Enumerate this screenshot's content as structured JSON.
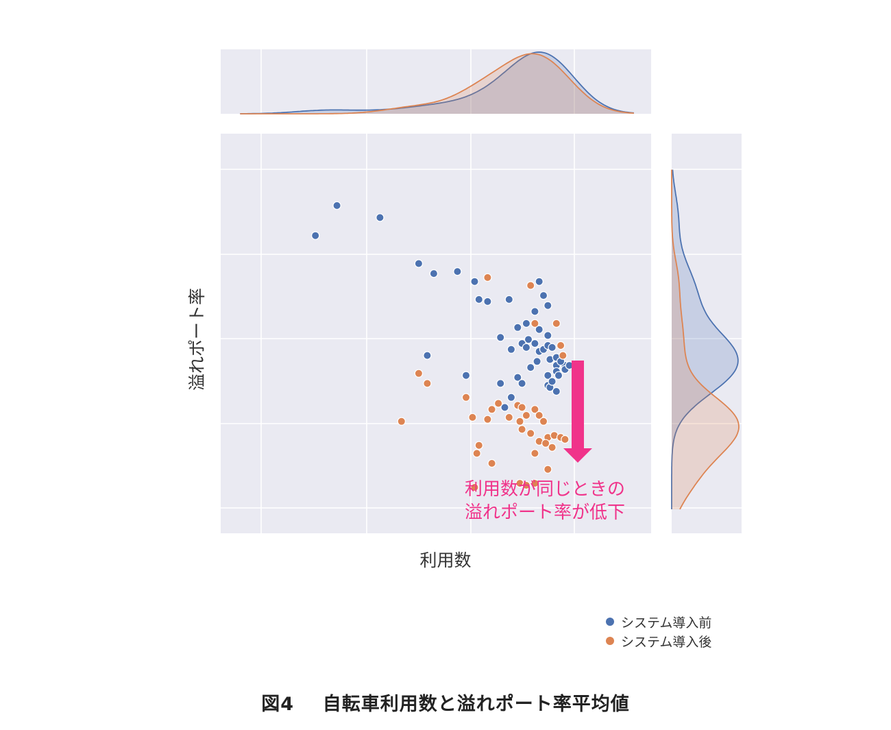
{
  "chart_data": {
    "type": "scatter",
    "xlabel": "利用数",
    "ylabel": "溢れポート率",
    "title": "",
    "xlim": [
      0,
      100
    ],
    "ylim": [
      0,
      100
    ],
    "grid": true,
    "legend_position": "bottom-right",
    "series": [
      {
        "name": "システム導入前",
        "color": "#4c72b0",
        "points": [
          [
            27,
            82
          ],
          [
            37,
            79
          ],
          [
            22,
            74.5
          ],
          [
            46,
            67.5
          ],
          [
            49.5,
            65
          ],
          [
            55,
            65.5
          ],
          [
            59,
            63
          ],
          [
            60,
            58.5
          ],
          [
            62,
            58
          ],
          [
            67,
            58.5
          ],
          [
            74,
            63
          ],
          [
            75,
            59.5
          ],
          [
            73,
            55.5
          ],
          [
            76,
            57
          ],
          [
            71,
            52.5
          ],
          [
            69,
            51.5
          ],
          [
            74,
            51
          ],
          [
            71.5,
            48.5
          ],
          [
            65,
            49
          ],
          [
            70,
            47.5
          ],
          [
            71,
            46.5
          ],
          [
            67.5,
            46
          ],
          [
            74,
            45.5
          ],
          [
            76,
            49.5
          ],
          [
            73,
            47.5
          ],
          [
            75,
            46
          ],
          [
            76,
            47
          ],
          [
            77,
            46.5
          ],
          [
            76.5,
            43.5
          ],
          [
            73.5,
            43
          ],
          [
            72,
            41.5
          ],
          [
            69,
            39
          ],
          [
            65,
            37.5
          ],
          [
            70,
            37.5
          ],
          [
            76,
            39.5
          ],
          [
            76,
            37
          ],
          [
            76.5,
            36.5
          ],
          [
            78,
            42
          ],
          [
            80,
            42
          ],
          [
            78,
            40.5
          ],
          [
            78.5,
            39.5
          ],
          [
            78,
            44
          ],
          [
            79,
            43
          ],
          [
            80,
            41
          ],
          [
            81,
            42
          ],
          [
            77,
            38
          ],
          [
            78,
            35.5
          ],
          [
            48,
            44.5
          ],
          [
            57,
            39.5
          ],
          [
            67.5,
            34
          ],
          [
            66,
            31.5
          ]
        ]
      },
      {
        "name": "システム導入後",
        "color": "#dd8452",
        "points": [
          [
            62,
            64
          ],
          [
            72,
            62
          ],
          [
            78,
            52.5
          ],
          [
            73,
            52.5
          ],
          [
            79,
            47
          ],
          [
            79.5,
            44.5
          ],
          [
            48,
            37.5
          ],
          [
            46,
            40
          ],
          [
            57,
            34
          ],
          [
            62,
            28.5
          ],
          [
            58.5,
            29
          ],
          [
            64.5,
            32.5
          ],
          [
            63,
            31
          ],
          [
            67,
            29
          ],
          [
            69,
            32
          ],
          [
            70,
            31.5
          ],
          [
            71,
            29.5
          ],
          [
            73,
            31
          ],
          [
            74,
            29.5
          ],
          [
            75,
            28
          ],
          [
            69.5,
            28
          ],
          [
            70,
            26
          ],
          [
            72,
            25
          ],
          [
            74,
            23
          ],
          [
            76,
            24
          ],
          [
            77.5,
            24.5
          ],
          [
            79,
            24
          ],
          [
            80,
            23.5
          ],
          [
            77,
            21.5
          ],
          [
            75.5,
            22.5
          ],
          [
            73,
            20
          ],
          [
            60,
            22
          ],
          [
            59.5,
            20
          ],
          [
            63,
            17.5
          ],
          [
            76,
            16
          ],
          [
            69.5,
            12.5
          ],
          [
            71,
            12
          ],
          [
            73,
            12.5
          ],
          [
            59,
            11.5
          ],
          [
            42,
            28
          ]
        ]
      }
    ],
    "annotation": {
      "lines": [
        "利用数が同じときの",
        "溢れポート率が低下"
      ],
      "color": "#f0338a",
      "arrow": "down"
    }
  },
  "legend": {
    "items": [
      {
        "label": "システム導入前",
        "color": "#4c72b0"
      },
      {
        "label": "システム導入後",
        "color": "#dd8452"
      }
    ]
  },
  "caption": {
    "figure_number": "図4",
    "text": "自転車利用数と溢れポート率平均値"
  }
}
